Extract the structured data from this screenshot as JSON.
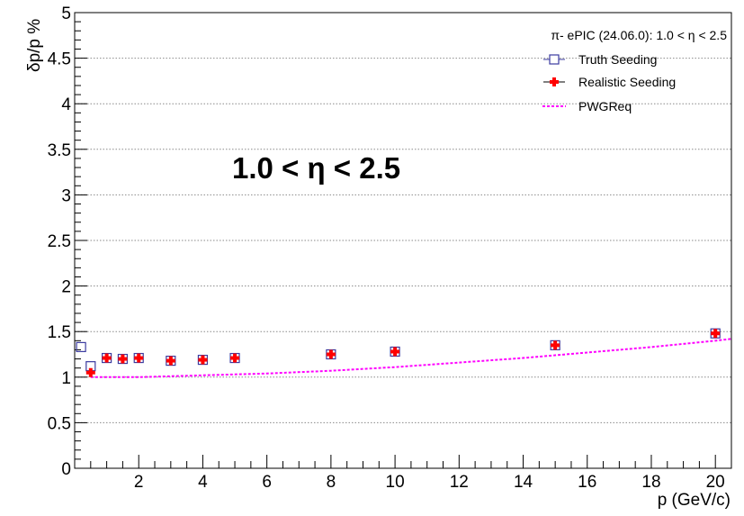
{
  "chart_data": {
    "type": "scatter",
    "title": "",
    "xlabel": "p (GeV/c)",
    "ylabel": "δp/p %",
    "xlim": [
      0.0,
      20.5
    ],
    "ylim": [
      0,
      5
    ],
    "x_ticks": [
      2,
      4,
      6,
      8,
      10,
      12,
      14,
      16,
      18,
      20
    ],
    "y_ticks": [
      0,
      0.5,
      1,
      1.5,
      2,
      2.5,
      3,
      3.5,
      4,
      4.5,
      5
    ],
    "y_tick_labels": [
      "0",
      "0.5",
      "1",
      "1.5",
      "2",
      "2.5",
      "3",
      "3.5",
      "4",
      "4.5",
      "5"
    ],
    "grid": "horizontal dotted",
    "legend_position": "top-right",
    "legend_header": "π- ePIC (24.06.0): 1.0 < η < 2.5",
    "annotation": "1.0 < η < 2.5",
    "series": [
      {
        "name": "Truth Seeding",
        "marker": "open-square",
        "color": "#3b3ba0",
        "x": [
          0.2,
          0.5,
          1,
          1.5,
          2,
          3,
          4,
          5,
          8,
          10,
          15,
          20
        ],
        "y": [
          1.33,
          1.12,
          1.21,
          1.2,
          1.21,
          1.18,
          1.19,
          1.21,
          1.25,
          1.28,
          1.35,
          1.48
        ]
      },
      {
        "name": "Realistic Seeding",
        "marker": "filled-cross",
        "color": "#ff0000",
        "x": [
          0.5,
          1,
          1.5,
          2,
          3,
          4,
          5,
          8,
          10,
          15,
          20
        ],
        "y": [
          1.05,
          1.21,
          1.2,
          1.21,
          1.18,
          1.19,
          1.21,
          1.25,
          1.28,
          1.35,
          1.48
        ]
      },
      {
        "name": "PWGReq",
        "line": "dashed",
        "color": "#ff00ff",
        "x": [
          0.5,
          2,
          4,
          6,
          8,
          10,
          12,
          14,
          16,
          18,
          20,
          20.5
        ],
        "y": [
          1.0,
          1.0,
          1.02,
          1.04,
          1.07,
          1.11,
          1.16,
          1.21,
          1.27,
          1.33,
          1.4,
          1.42
        ]
      }
    ]
  }
}
